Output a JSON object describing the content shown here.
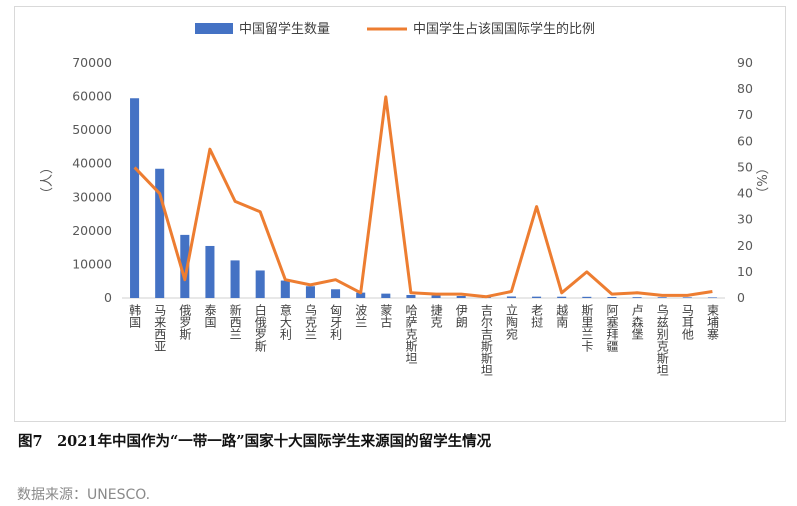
{
  "chart_data": {
    "type": "bar",
    "categories": [
      "韩国",
      "马来西亚",
      "俄罗斯",
      "泰国",
      "新西兰",
      "白俄罗斯",
      "意大利",
      "乌克兰",
      "匈牙利",
      "波兰",
      "蒙古",
      "哈萨克斯坦",
      "捷克",
      "伊朗",
      "吉尔吉斯斯坦",
      "立陶宛",
      "老挝",
      "越南",
      "斯里兰卡",
      "阿塞拜疆",
      "卢森堡",
      "乌兹别克斯坦",
      "马耳他",
      "柬埔寨"
    ],
    "series": [
      {
        "name": "中国留学生数量",
        "type": "bar",
        "axis": "left",
        "color": "#4472c4",
        "values": [
          59500,
          38500,
          18800,
          15500,
          11200,
          8200,
          5200,
          3500,
          2600,
          1600,
          1300,
          900,
          750,
          600,
          500,
          450,
          400,
          380,
          350,
          300,
          250,
          230,
          200,
          180
        ]
      },
      {
        "name": "中国学生占该国国际学生的比例",
        "type": "line",
        "axis": "right",
        "color": "#ed7d31",
        "values": [
          50,
          40,
          7,
          57,
          37,
          33,
          7,
          5,
          7,
          2,
          77,
          2,
          1.5,
          1.5,
          0.5,
          2.5,
          35,
          2,
          10,
          1.5,
          2,
          1,
          1,
          2.5
        ]
      }
    ],
    "y_left": {
      "label": "（人）",
      "min": 0,
      "max": 70000,
      "ticks": [
        "0",
        "10000",
        "20000",
        "30000",
        "40000",
        "50000",
        "60000",
        "70000"
      ]
    },
    "y_right": {
      "label": "（%）",
      "min": 0,
      "max": 90,
      "ticks": [
        "0",
        "10",
        "20",
        "30",
        "40",
        "50",
        "60",
        "70",
        "80",
        "90"
      ]
    },
    "legend_position": "top",
    "grid": false
  },
  "caption": "图7　2021年中国作为“一带一路”国家十大国际学生来源国的留学生情况",
  "source": "数据来源：UNESCO."
}
